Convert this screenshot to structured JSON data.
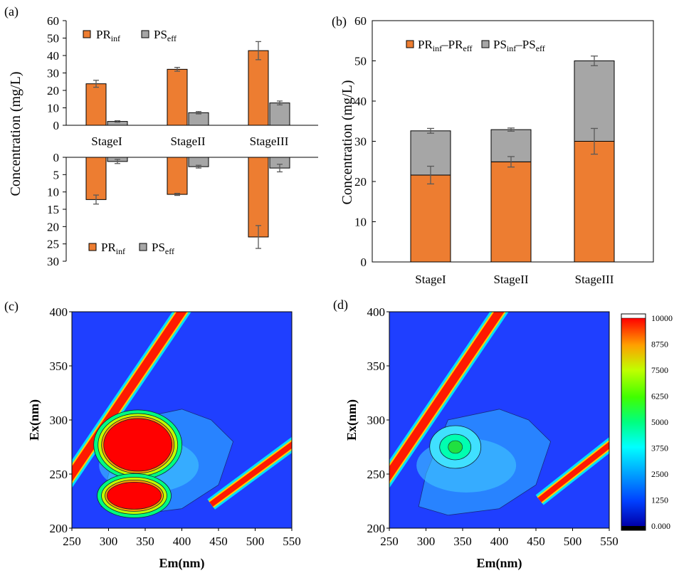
{
  "panel_labels": {
    "a": "(a)",
    "b": "(b)",
    "c": "(c)",
    "d": "(d)"
  },
  "colors": {
    "pr": "#ED7D31",
    "ps": "#A6A6A6",
    "axis": "#000000",
    "err": "#595959"
  },
  "chart_data": [
    {
      "id": "a-top",
      "type": "bar",
      "categories": [
        "StageI",
        "StageII",
        "StageIII"
      ],
      "series": [
        {
          "name": "PR_inf",
          "label_main": "PR",
          "label_sub": "inf",
          "values": [
            23.8,
            32.1,
            42.8
          ],
          "errors": [
            2.0,
            1.1,
            5.2
          ]
        },
        {
          "name": "PS_eff",
          "label_main": "PS",
          "label_sub": "eff",
          "values": [
            2.2,
            7.2,
            12.8
          ],
          "errors": [
            0.4,
            0.7,
            1.1
          ]
        }
      ],
      "ylim": [
        0,
        60
      ],
      "yticks": [
        "0",
        "10",
        "20",
        "30",
        "40",
        "50",
        "60"
      ],
      "legend": "top-left"
    },
    {
      "id": "a-bottom",
      "type": "bar",
      "categories": [
        "StageI",
        "StageII",
        "StageIII"
      ],
      "series": [
        {
          "name": "PR_inf",
          "label_main": "PR",
          "label_sub": "inf",
          "values": [
            12.2,
            10.7,
            23.0
          ],
          "errors": [
            1.3,
            0.3,
            3.3
          ]
        },
        {
          "name": "PS_eff",
          "label_main": "PS",
          "label_sub": "eff",
          "values": [
            1.2,
            2.7,
            3.1
          ],
          "errors": [
            0.6,
            0.4,
            1.1
          ]
        }
      ],
      "ylim": [
        0,
        30
      ],
      "yticks": [
        "0",
        "5",
        "10",
        "15",
        "20",
        "25",
        "30"
      ],
      "inverted": true,
      "legend": "bottom-left"
    },
    {
      "id": "b",
      "type": "bar",
      "stacked": true,
      "categories": [
        "StageI",
        "StageII",
        "StageIII"
      ],
      "series": [
        {
          "name": "PR_inf-PR_eff",
          "values": [
            21.6,
            24.9,
            30.0
          ],
          "errors": [
            2.2,
            1.3,
            3.2
          ]
        },
        {
          "name": "PS_inf-PS_eff",
          "values": [
            11.0,
            8.0,
            20.0
          ],
          "errors": [
            0.6,
            0.4,
            1.2
          ]
        }
      ],
      "ylabel": "Concentration (mg/L)",
      "ylim": [
        0,
        60
      ],
      "yticks": [
        "0",
        "10",
        "20",
        "30",
        "40",
        "50",
        "60"
      ],
      "legend": "top-left"
    },
    {
      "id": "c",
      "type": "heatmap",
      "xlabel": "Em(nm)",
      "ylabel": "Ex(nm)",
      "xticks": [
        "250",
        "300",
        "350",
        "400",
        "450",
        "500",
        "550"
      ],
      "yticks": [
        "200",
        "250",
        "300",
        "350",
        "400"
      ],
      "xlim": [
        250,
        550
      ],
      "ylim": [
        200,
        400
      ],
      "peaks": [
        {
          "em": 340,
          "ex": 277,
          "intensity": 10000
        },
        {
          "em": 335,
          "ex": 230,
          "intensity": 10000
        }
      ]
    },
    {
      "id": "d",
      "type": "heatmap",
      "xlabel": "Em(nm)",
      "ylabel": "Ex(nm)",
      "xticks": [
        "250",
        "300",
        "350",
        "400",
        "450",
        "500",
        "550"
      ],
      "yticks": [
        "200",
        "250",
        "300",
        "350",
        "400"
      ],
      "xlim": [
        250,
        550
      ],
      "ylim": [
        200,
        400
      ],
      "peaks": [
        {
          "em": 340,
          "ex": 275,
          "intensity": 4500
        }
      ]
    }
  ],
  "ylabel_a": "Concentration (mg/L)",
  "legend_b": {
    "pr_main": "PR",
    "pr_sub1": "inf",
    "pr_dash": "–PR",
    "pr_sub2": "eff",
    "ps_main": "PS",
    "ps_sub1": "inf",
    "ps_dash": "–PS",
    "ps_sub2": "eff"
  },
  "colorbar": {
    "ticks": [
      "10000",
      "8750",
      "7500",
      "6250",
      "5000",
      "3750",
      "2500",
      "1250",
      "0.000"
    ],
    "stops": [
      "#000000",
      "#0000FF",
      "#0080FF",
      "#00FFFF",
      "#00FF80",
      "#00FF00",
      "#C0FF00",
      "#FFFF00",
      "#FF8000",
      "#FF0000"
    ]
  }
}
